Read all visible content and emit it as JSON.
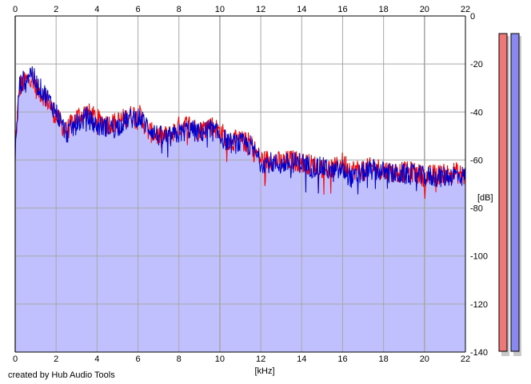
{
  "chart_data": {
    "type": "area",
    "title": "",
    "xlabel": "[kHz]",
    "ylabel": "[dB]",
    "xlim": [
      0,
      22
    ],
    "ylim": [
      -140,
      0
    ],
    "x_ticks": [
      "0",
      "2",
      "4",
      "6",
      "8",
      "10",
      "12",
      "14",
      "16",
      "18",
      "20",
      "22"
    ],
    "y_ticks": [
      "0",
      "-20",
      "-40",
      "-60",
      "-80",
      "-100",
      "-120",
      "-140"
    ],
    "grid": true,
    "credit": "created by Hub Audio Tools",
    "fill_color": "#c0c0ff",
    "series": [
      {
        "color": "#ff0000",
        "x": [
          0,
          0.2,
          0.5,
          0.8,
          1.0,
          1.5,
          2.0,
          2.5,
          3.0,
          3.5,
          4.0,
          4.5,
          5.0,
          5.5,
          6.0,
          6.5,
          7.0,
          7.5,
          8.0,
          8.5,
          9.0,
          9.5,
          10.0,
          10.5,
          11.0,
          11.5,
          12.0,
          12.5,
          13.0,
          13.5,
          14.0,
          14.5,
          15.0,
          15.5,
          16.0,
          16.5,
          17.0,
          17.5,
          18.0,
          18.5,
          19.0,
          19.5,
          20.0,
          20.5,
          21.0,
          21.5,
          22.0
        ],
        "values": [
          -55,
          -30,
          -27,
          -25,
          -30,
          -34,
          -42,
          -48,
          -42,
          -40,
          -43,
          -45,
          -44,
          -42,
          -40,
          -48,
          -50,
          -50,
          -46,
          -45,
          -48,
          -45,
          -48,
          -52,
          -52,
          -53,
          -60,
          -60,
          -61,
          -60,
          -61,
          -62,
          -63,
          -64,
          -61,
          -64,
          -64,
          -63,
          -64,
          -65,
          -65,
          -65,
          -67,
          -66,
          -66,
          -65,
          -67
        ]
      },
      {
        "color": "#0000cc",
        "x": [
          0,
          0.2,
          0.5,
          0.8,
          1.0,
          1.5,
          2.0,
          2.5,
          3.0,
          3.5,
          4.0,
          4.5,
          5.0,
          5.5,
          6.0,
          6.5,
          7.0,
          7.5,
          8.0,
          8.5,
          9.0,
          9.5,
          10.0,
          10.5,
          11.0,
          11.5,
          12.0,
          12.5,
          13.0,
          13.5,
          14.0,
          14.5,
          15.0,
          15.5,
          16.0,
          16.5,
          17.0,
          17.5,
          18.0,
          18.5,
          19.0,
          19.5,
          20.0,
          20.5,
          21.0,
          21.5,
          22.0
        ],
        "values": [
          -58,
          -29,
          -26,
          -23,
          -28,
          -33,
          -40,
          -49,
          -45,
          -42,
          -46,
          -46,
          -46,
          -43,
          -42,
          -46,
          -50,
          -51,
          -49,
          -47,
          -49,
          -47,
          -50,
          -53,
          -53,
          -54,
          -61,
          -61,
          -62,
          -61,
          -61,
          -63,
          -63,
          -65,
          -64,
          -68,
          -65,
          -64,
          -65,
          -66,
          -66,
          -66,
          -67,
          -67,
          -67,
          -66,
          -67
        ]
      }
    ],
    "level_meters": [
      {
        "color": "#ee7777",
        "level": 0.985
      },
      {
        "color": "#8888ee",
        "level": 0.985
      }
    ]
  }
}
